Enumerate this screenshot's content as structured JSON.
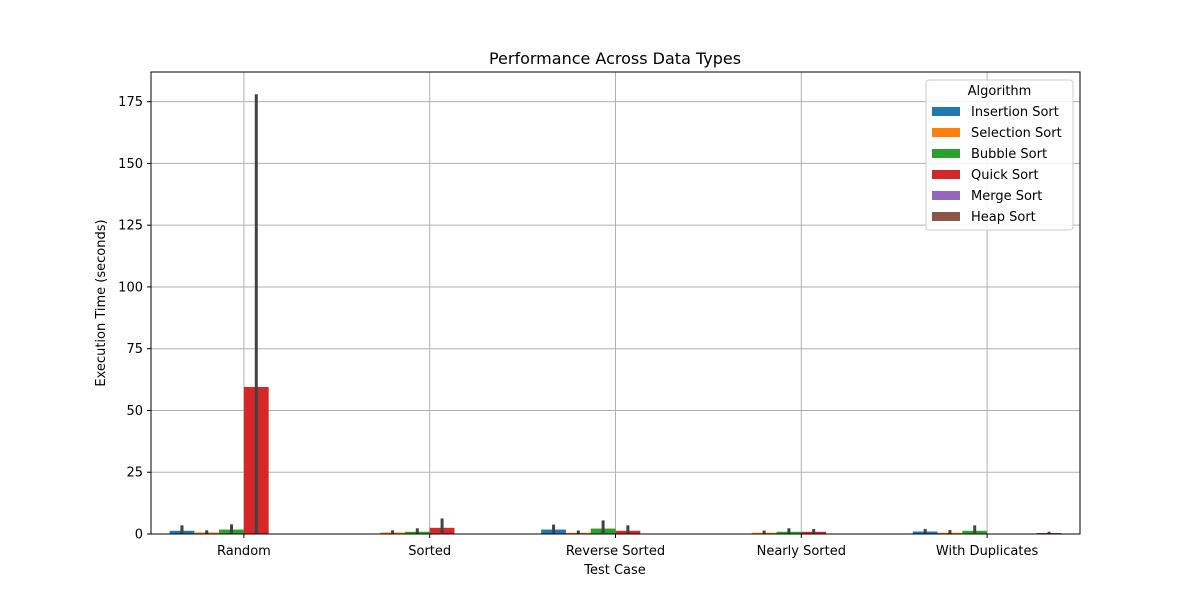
{
  "chart_data": {
    "type": "bar",
    "title": "Performance Across Data Types",
    "xlabel": "Test Case",
    "ylabel": "Execution Time (seconds)",
    "categories": [
      "Random",
      "Sorted",
      "Reverse Sorted",
      "Nearly Sorted",
      "With Duplicates"
    ],
    "ylim": [
      0,
      187
    ],
    "yticks": [
      0,
      25,
      50,
      75,
      100,
      125,
      150,
      175
    ],
    "grid": true,
    "legend": {
      "title": "Algorithm",
      "placement": "top-right"
    },
    "series": [
      {
        "name": "Insertion Sort",
        "color": "#1f77b4",
        "values": [
          1.3,
          0.1,
          1.8,
          0.1,
          1.0
        ],
        "err_low": [
          0.2,
          0.0,
          0.3,
          0.0,
          0.2
        ],
        "err_high": [
          3.5,
          0.2,
          3.8,
          0.2,
          2.0
        ]
      },
      {
        "name": "Selection Sort",
        "color": "#ff7f0e",
        "values": [
          0.6,
          0.6,
          0.5,
          0.5,
          0.5
        ],
        "err_low": [
          0.1,
          0.1,
          0.1,
          0.1,
          0.1
        ],
        "err_high": [
          1.5,
          1.5,
          1.4,
          1.4,
          1.6
        ]
      },
      {
        "name": "Bubble Sort",
        "color": "#2ca02c",
        "values": [
          1.8,
          0.9,
          2.2,
          0.9,
          1.3
        ],
        "err_low": [
          0.3,
          0.2,
          0.4,
          0.2,
          0.3
        ],
        "err_high": [
          3.9,
          2.3,
          5.5,
          2.3,
          3.5
        ]
      },
      {
        "name": "Quick Sort",
        "color": "#d62728",
        "values": [
          59.5,
          2.5,
          1.3,
          0.9,
          0.1
        ],
        "err_low": [
          0.0,
          0.4,
          0.2,
          0.2,
          0.0
        ],
        "err_high": [
          178.0,
          6.3,
          3.5,
          2.0,
          0.2
        ]
      },
      {
        "name": "Merge Sort",
        "color": "#9467bd",
        "values": [
          0.05,
          0.05,
          0.05,
          0.05,
          0.05
        ],
        "err_low": [
          0.0,
          0.0,
          0.0,
          0.0,
          0.0
        ],
        "err_high": [
          0.1,
          0.1,
          0.1,
          0.1,
          0.1
        ]
      },
      {
        "name": "Heap Sort",
        "color": "#8c564b",
        "values": [
          0.08,
          0.08,
          0.08,
          0.08,
          0.4
        ],
        "err_low": [
          0.0,
          0.0,
          0.0,
          0.0,
          0.0
        ],
        "err_high": [
          0.15,
          0.15,
          0.15,
          0.15,
          0.9
        ]
      }
    ]
  }
}
